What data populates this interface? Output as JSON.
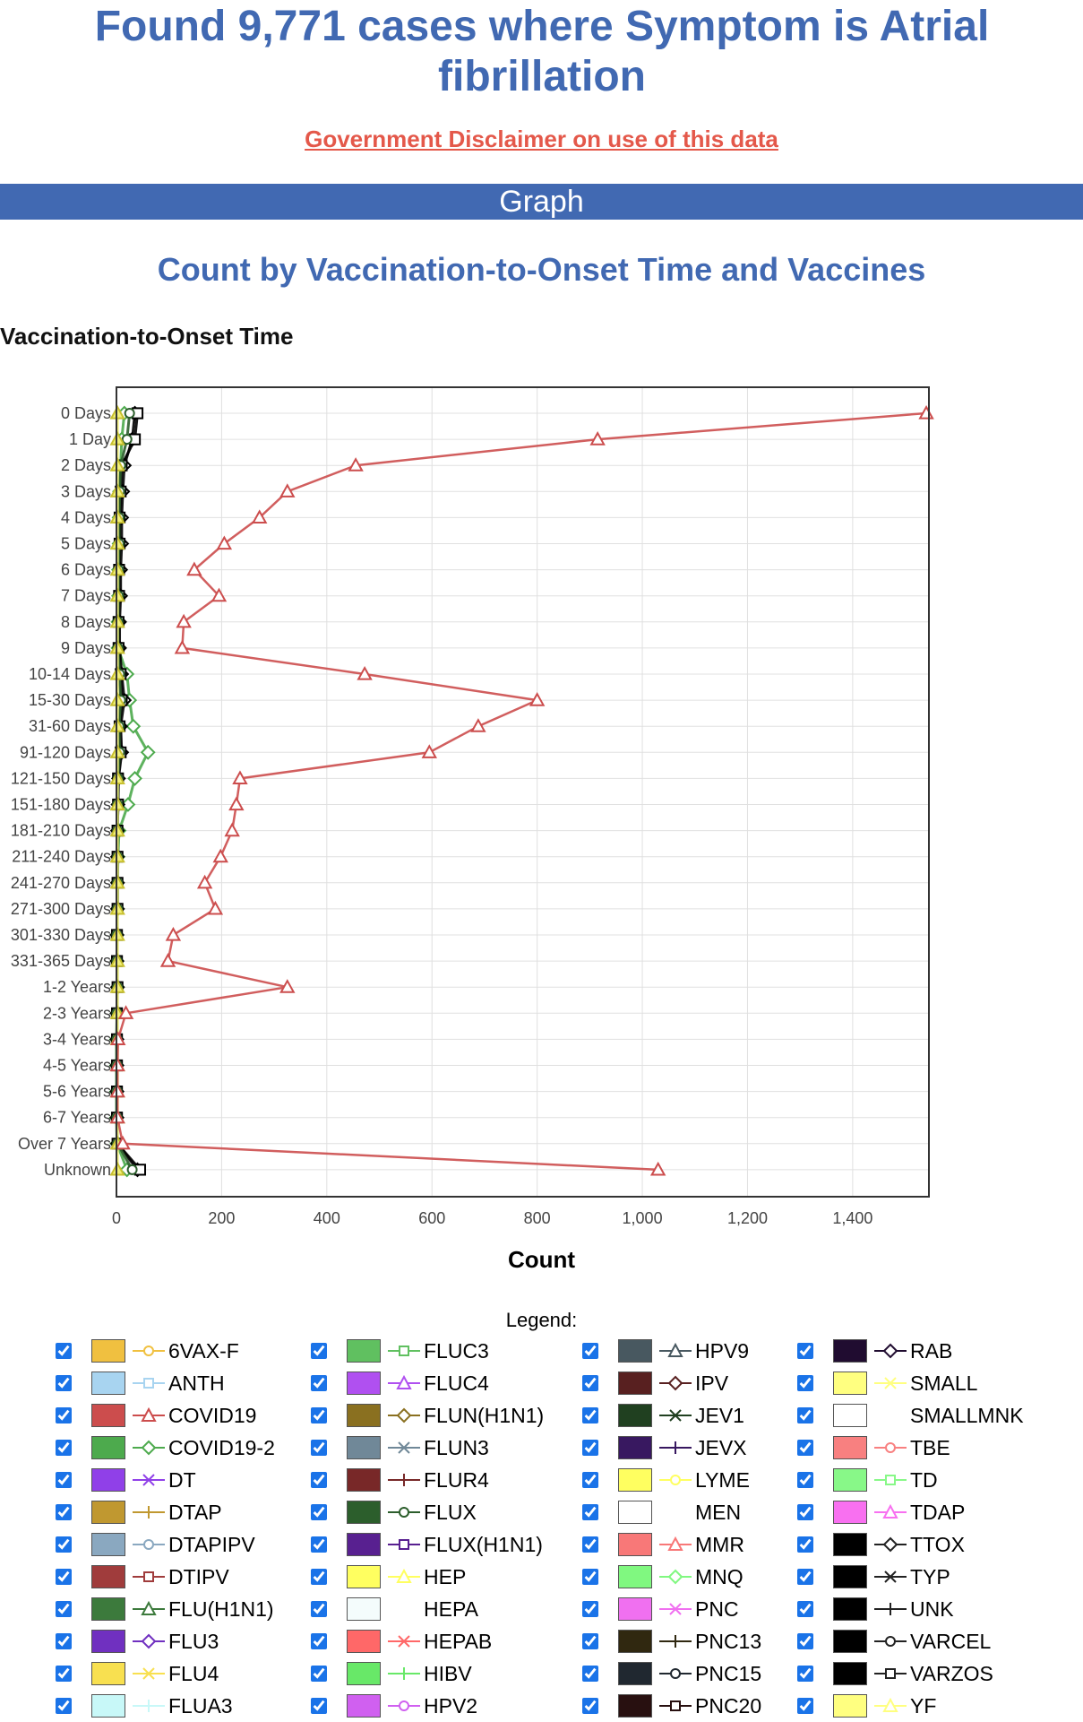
{
  "page": {
    "title": "Found 9,771 cases where Symptom is Atrial fibrillation",
    "disclaimer": "Government Disclaimer on use of this data",
    "section": "Graph",
    "chart_heading": "Count by Vaccination-to-Onset Time and Vaccines",
    "y_axis_title": "Vaccination-to-Onset Time",
    "x_axis_title": "Count",
    "legend_title": "Legend:"
  },
  "chart_data": {
    "type": "line",
    "orientation": "horizontal",
    "title": "Count by Vaccination-to-Onset Time and Vaccines",
    "xlabel": "Count",
    "ylabel": "Vaccination-to-Onset Time",
    "xlim": [
      0,
      1545
    ],
    "xticks": [
      "0",
      "200",
      "400",
      "600",
      "800",
      "1,000",
      "1,200",
      "1,400"
    ],
    "xtick_values": [
      0,
      200,
      400,
      600,
      800,
      1000,
      1200,
      1400
    ],
    "grid": true,
    "categories": [
      "0 Days",
      "1 Day",
      "2 Days",
      "3 Days",
      "4 Days",
      "5 Days",
      "6 Days",
      "7 Days",
      "8 Days",
      "9 Days",
      "10-14 Days",
      "15-30 Days",
      "31-60 Days",
      "91-120 Days",
      "121-150 Days",
      "151-180 Days",
      "181-210 Days",
      "211-240 Days",
      "241-270 Days",
      "271-300 Days",
      "301-330 Days",
      "331-365 Days",
      "1-2 Years",
      "2-3 Years",
      "3-4 Years",
      "4-5 Years",
      "5-6 Years",
      "6-7 Years",
      "Over 7 Years",
      "Unknown"
    ],
    "series": [
      {
        "name": "COVID19",
        "color": "#cc4d4d",
        "marker": "triangle",
        "values": [
          1540,
          915,
          455,
          325,
          272,
          205,
          148,
          195,
          128,
          125,
          472,
          800,
          688,
          595,
          235,
          228,
          220,
          198,
          168,
          188,
          108,
          98,
          325,
          18,
          3,
          2,
          2,
          2,
          12,
          1030
        ]
      },
      {
        "name": "COVID19-2",
        "color": "#4daa4d",
        "marker": "diamond",
        "values": [
          15,
          10,
          8,
          6,
          5,
          5,
          4,
          4,
          3,
          3,
          20,
          25,
          32,
          60,
          35,
          22,
          5,
          3,
          2,
          2,
          1,
          1,
          2,
          1,
          0,
          0,
          0,
          0,
          1,
          20
        ]
      },
      {
        "name": "TTOX",
        "color": "#000000",
        "marker": "diamond",
        "values": [
          35,
          30,
          15,
          12,
          10,
          10,
          8,
          8,
          6,
          6,
          10,
          15,
          8,
          10,
          4,
          3,
          2,
          2,
          2,
          2,
          1,
          1,
          2,
          1,
          1,
          1,
          1,
          1,
          2,
          40
        ]
      },
      {
        "name": "VARZOS",
        "color": "#000000",
        "marker": "square",
        "values": [
          40,
          35,
          10,
          8,
          6,
          6,
          5,
          5,
          4,
          4,
          8,
          10,
          6,
          8,
          3,
          3,
          2,
          2,
          2,
          2,
          1,
          1,
          2,
          1,
          1,
          1,
          1,
          1,
          2,
          45
        ]
      },
      {
        "name": "FLUX",
        "color": "#2c5e2c",
        "marker": "circle",
        "values": [
          25,
          20,
          8,
          6,
          5,
          5,
          4,
          4,
          3,
          3,
          6,
          8,
          5,
          6,
          3,
          2,
          2,
          2,
          2,
          2,
          1,
          1,
          2,
          1,
          1,
          1,
          1,
          1,
          2,
          30
        ]
      },
      {
        "name": "YF",
        "color": "#f2f07a",
        "marker": "triangle",
        "values": [
          2,
          2,
          2,
          2,
          2,
          2,
          2,
          2,
          2,
          2,
          2,
          2,
          2,
          2,
          2,
          2,
          2,
          2,
          2,
          2,
          2,
          2,
          2,
          2,
          2,
          2,
          2,
          2,
          2,
          2
        ]
      }
    ],
    "legend": [
      [
        {
          "name": "6VAX-F",
          "color": "#f0c040",
          "marker": "circle"
        },
        {
          "name": "ANTH",
          "color": "#a8d4f0",
          "marker": "square"
        },
        {
          "name": "COVID19",
          "color": "#cc4d4d",
          "marker": "triangle"
        },
        {
          "name": "COVID19-2",
          "color": "#4daa4d",
          "marker": "diamond"
        },
        {
          "name": "DT",
          "color": "#9040e8",
          "marker": "x"
        },
        {
          "name": "DTAP",
          "color": "#c09830",
          "marker": "plus"
        },
        {
          "name": "DTAPIPV",
          "color": "#8aa8c0",
          "marker": "circle"
        },
        {
          "name": "DTIPV",
          "color": "#a03c3c",
          "marker": "square"
        },
        {
          "name": "FLU(H1N1)",
          "color": "#3c7a3c",
          "marker": "triangle"
        },
        {
          "name": "FLU3",
          "color": "#7030c0",
          "marker": "diamond"
        },
        {
          "name": "FLU4",
          "color": "#f8e050",
          "marker": "x"
        },
        {
          "name": "FLUA3",
          "color": "#c8f8f8",
          "marker": "plus"
        }
      ],
      [
        {
          "name": "FLUC3",
          "color": "#60c060",
          "marker": "square"
        },
        {
          "name": "FLUC4",
          "color": "#b050f0",
          "marker": "triangle"
        },
        {
          "name": "FLUN(H1N1)",
          "color": "#8a7020",
          "marker": "diamond"
        },
        {
          "name": "FLUN3",
          "color": "#708898",
          "marker": "x"
        },
        {
          "name": "FLUR4",
          "color": "#782828",
          "marker": "plus"
        },
        {
          "name": "FLUX",
          "color": "#2c5e2c",
          "marker": "circle"
        },
        {
          "name": "FLUX(H1N1)",
          "color": "#582090",
          "marker": "square"
        },
        {
          "name": "HEP",
          "color": "#ffff60",
          "marker": "triangle"
        },
        {
          "name": "HEPA",
          "color": "#f4fcfc",
          "marker": "none"
        },
        {
          "name": "HEPAB",
          "color": "#ff6868",
          "marker": "x"
        },
        {
          "name": "HIBV",
          "color": "#68e868",
          "marker": "plus"
        },
        {
          "name": "HPV2",
          "color": "#d060f0",
          "marker": "circle"
        }
      ],
      [
        {
          "name": "HPV9",
          "color": "#485860",
          "marker": "triangle"
        },
        {
          "name": "IPV",
          "color": "#582020",
          "marker": "diamond"
        },
        {
          "name": "JEV1",
          "color": "#204020",
          "marker": "x"
        },
        {
          "name": "JEVX",
          "color": "#381860",
          "marker": "plus"
        },
        {
          "name": "LYME",
          "color": "#ffff60",
          "marker": "circle"
        },
        {
          "name": "MEN",
          "color": "#ffffff",
          "marker": "none"
        },
        {
          "name": "MMR",
          "color": "#f87878",
          "marker": "triangle"
        },
        {
          "name": "MNQ",
          "color": "#80f880",
          "marker": "diamond"
        },
        {
          "name": "PNC",
          "color": "#f070f0",
          "marker": "x"
        },
        {
          "name": "PNC13",
          "color": "#302810",
          "marker": "plus"
        },
        {
          "name": "PNC15",
          "color": "#202830",
          "marker": "circle"
        },
        {
          "name": "PNC20",
          "color": "#281010",
          "marker": "square"
        }
      ],
      [
        {
          "name": "RAB",
          "color": "#200c30",
          "marker": "diamond"
        },
        {
          "name": "SMALL",
          "color": "#ffff80",
          "marker": "x"
        },
        {
          "name": "SMALLMNK",
          "color": "#ffffff",
          "marker": "none"
        },
        {
          "name": "TBE",
          "color": "#f88080",
          "marker": "circle"
        },
        {
          "name": "TD",
          "color": "#88f888",
          "marker": "square"
        },
        {
          "name": "TDAP",
          "color": "#f870f0",
          "marker": "triangle"
        },
        {
          "name": "TTOX",
          "color": "#000000",
          "marker": "diamond"
        },
        {
          "name": "TYP",
          "color": "#000000",
          "marker": "x"
        },
        {
          "name": "UNK",
          "color": "#000000",
          "marker": "plus"
        },
        {
          "name": "VARCEL",
          "color": "#000000",
          "marker": "circle"
        },
        {
          "name": "VARZOS",
          "color": "#000000",
          "marker": "square"
        },
        {
          "name": "YF",
          "color": "#ffff80",
          "marker": "triangle"
        }
      ]
    ]
  }
}
